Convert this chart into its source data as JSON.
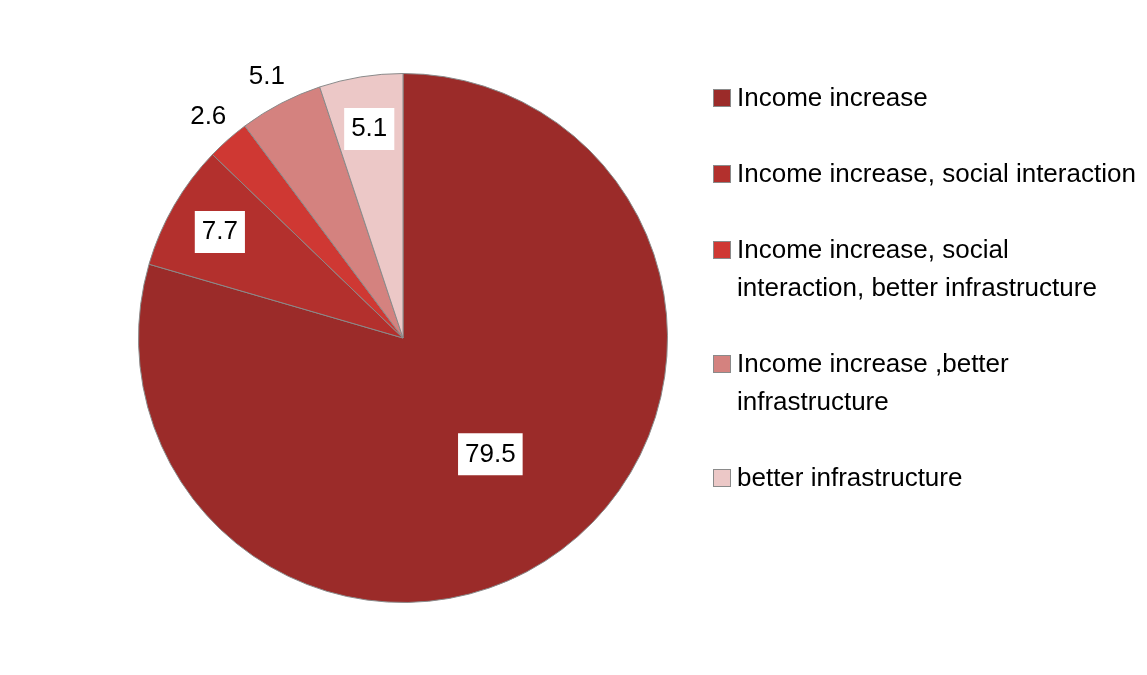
{
  "chart_data": {
    "type": "pie",
    "categories": [
      "Income increase",
      "Income increase, social interaction",
      "Income increase, social interaction, better infrastructure",
      "Income increase ,better infrastructure",
      "better infrastructure"
    ],
    "values": [
      79.5,
      7.7,
      2.6,
      5.1,
      5.1
    ],
    "colors": [
      "#9b2b29",
      "#b3302d",
      "#cf3833",
      "#d4827f",
      "#ecc8c7"
    ],
    "data_labels": true,
    "legend": "right"
  }
}
